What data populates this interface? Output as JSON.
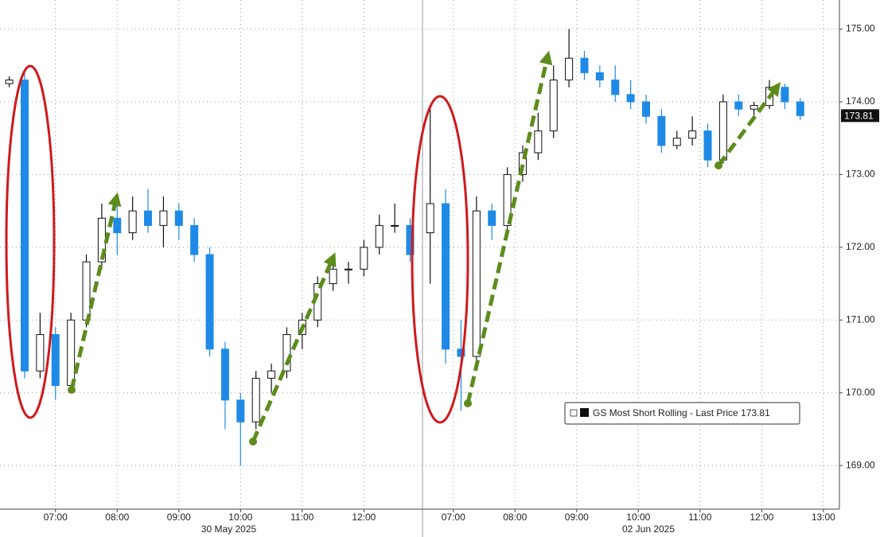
{
  "chart_data": {
    "type": "candlestick",
    "series_name": "GS Most Short Rolling - Last Price",
    "last_price": 173.81,
    "ylim": [
      168.4,
      175.4
    ],
    "yticks": [
      {
        "value": 169,
        "label": "169.00"
      },
      {
        "value": 170,
        "label": "170.00"
      },
      {
        "value": 171,
        "label": "171.00"
      },
      {
        "value": 172,
        "label": "172.00"
      },
      {
        "value": 173,
        "label": "173.00"
      },
      {
        "value": 174,
        "label": "174.00"
      },
      {
        "value": 175,
        "label": "175.00"
      }
    ],
    "grid": true,
    "up_color": "#ffffff",
    "down_color": "#1f8ae6",
    "panels": [
      {
        "date_label": "30 May 2025",
        "xlim": [
          6.1,
          12.95
        ],
        "xticks": [
          {
            "value": 7,
            "label": "07:00"
          },
          {
            "value": 8,
            "label": "08:00"
          },
          {
            "value": 9,
            "label": "09:00"
          },
          {
            "value": 10,
            "label": "10:00"
          },
          {
            "value": 11,
            "label": "11:00"
          },
          {
            "value": 12,
            "label": "12:00"
          }
        ],
        "x": [
          6.25,
          6.5,
          6.75,
          7.0,
          7.25,
          7.5,
          7.75,
          8.0,
          8.25,
          8.5,
          8.75,
          9.0,
          9.25,
          9.5,
          9.75,
          10.0,
          10.25,
          10.5,
          10.75,
          11.0,
          11.25,
          11.5,
          11.75,
          12.0,
          12.25,
          12.5,
          12.75
        ],
        "open": [
          174.25,
          174.3,
          170.3,
          170.8,
          170.1,
          171.0,
          171.8,
          172.4,
          172.2,
          172.5,
          172.3,
          172.5,
          172.3,
          171.9,
          170.6,
          169.9,
          169.6,
          170.2,
          170.3,
          170.8,
          171.0,
          171.5,
          171.7,
          171.7,
          172.0,
          172.3,
          172.3
        ],
        "high": [
          174.35,
          174.45,
          171.1,
          170.9,
          171.1,
          171.9,
          172.6,
          172.6,
          172.7,
          172.8,
          172.7,
          172.6,
          172.4,
          172.0,
          170.7,
          170.0,
          170.3,
          170.4,
          170.9,
          171.1,
          171.6,
          171.9,
          171.8,
          172.1,
          172.45,
          172.6,
          172.4
        ],
        "low": [
          174.2,
          170.2,
          170.2,
          169.9,
          170.0,
          170.9,
          171.7,
          171.9,
          172.1,
          172.2,
          172.0,
          172.1,
          171.8,
          170.5,
          169.5,
          169.0,
          169.5,
          170.0,
          170.2,
          170.6,
          170.9,
          171.4,
          171.5,
          171.6,
          171.9,
          172.2,
          171.8
        ],
        "close": [
          174.3,
          170.3,
          170.8,
          170.1,
          171.0,
          171.8,
          172.4,
          172.2,
          172.5,
          172.3,
          172.5,
          172.3,
          171.9,
          170.6,
          169.9,
          169.6,
          170.2,
          170.3,
          170.8,
          171.0,
          171.5,
          171.7,
          171.7,
          172.0,
          172.3,
          172.3,
          171.9
        ]
      },
      {
        "date_label": "02 Jun 2025",
        "xlim": [
          6.5,
          13.26
        ],
        "xticks": [
          {
            "value": 7,
            "label": "07:00"
          },
          {
            "value": 8,
            "label": "08:00"
          },
          {
            "value": 9,
            "label": "09:00"
          },
          {
            "value": 10,
            "label": "10:00"
          },
          {
            "value": 11,
            "label": "11:00"
          },
          {
            "value": 12,
            "label": "12:00"
          },
          {
            "value": 13,
            "label": "13:00"
          }
        ],
        "x": [
          6.625,
          6.875,
          7.125,
          7.375,
          7.625,
          7.875,
          8.125,
          8.375,
          8.625,
          8.875,
          9.125,
          9.375,
          9.625,
          9.875,
          10.125,
          10.375,
          10.625,
          10.875,
          11.125,
          11.375,
          11.625,
          11.875,
          12.125,
          12.375,
          12.625
        ],
        "open": [
          172.2,
          172.6,
          170.6,
          170.5,
          172.5,
          172.3,
          173.0,
          173.3,
          173.6,
          174.3,
          174.6,
          174.4,
          174.3,
          174.1,
          174.0,
          173.8,
          173.4,
          173.5,
          173.6,
          173.2,
          174.0,
          173.9,
          173.95,
          174.2,
          174.0
        ],
        "high": [
          173.95,
          172.8,
          171.0,
          172.7,
          172.6,
          173.1,
          173.4,
          173.85,
          174.5,
          175.0,
          174.7,
          174.5,
          174.5,
          174.3,
          174.1,
          173.9,
          173.6,
          173.8,
          173.7,
          174.1,
          174.1,
          174.0,
          174.3,
          174.25,
          174.05
        ],
        "low": [
          171.5,
          170.4,
          169.75,
          170.4,
          172.1,
          172.2,
          172.9,
          173.2,
          173.5,
          174.2,
          174.3,
          174.2,
          174.0,
          173.9,
          173.7,
          173.3,
          173.35,
          173.4,
          173.1,
          173.15,
          173.8,
          173.8,
          173.9,
          173.9,
          173.75
        ],
        "close": [
          172.6,
          170.6,
          170.5,
          172.5,
          172.3,
          173.0,
          173.3,
          173.6,
          174.3,
          174.6,
          174.4,
          174.3,
          174.1,
          174.0,
          173.8,
          173.4,
          173.5,
          173.6,
          173.2,
          174.0,
          173.9,
          173.95,
          174.2,
          174.0,
          173.81
        ]
      }
    ]
  }
}
